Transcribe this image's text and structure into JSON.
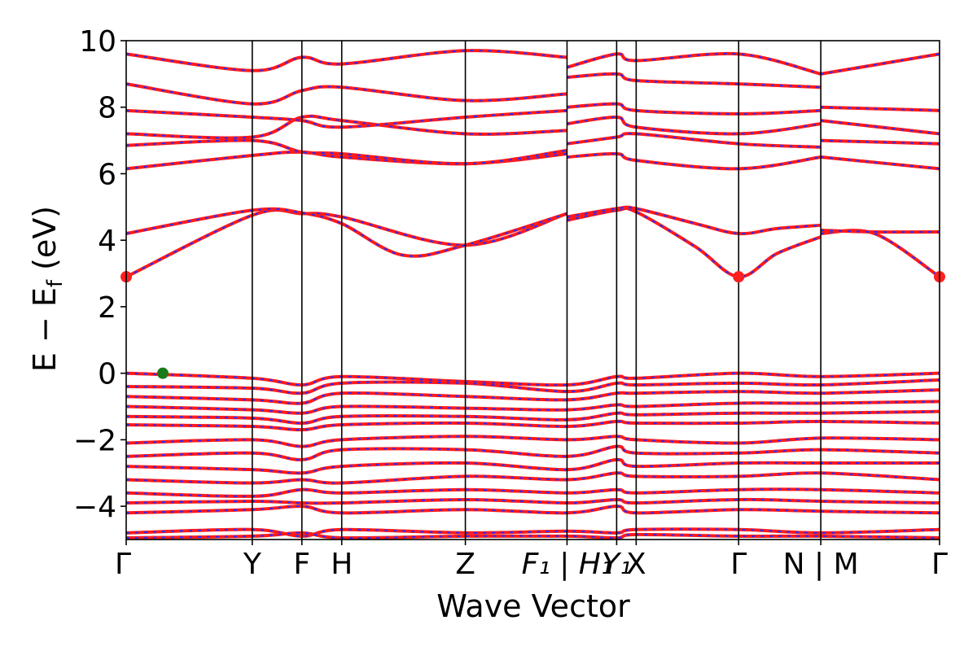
{
  "chart_data": {
    "type": "line",
    "xlabel": "Wave Vector",
    "ylabel": "E − E",
    "ylabel_sub": "f",
    "ylabel_unit": " (eV)",
    "ylim": [
      -5,
      10
    ],
    "yticks": [
      -4,
      -2,
      0,
      2,
      4,
      6,
      8,
      10
    ],
    "ytick_labels": [
      "−4",
      "−2",
      "0",
      "2",
      "4",
      "6",
      "8",
      "10"
    ],
    "xlim": [
      0,
      1
    ],
    "kpoints": [
      {
        "label": "Γ",
        "x": 0.0
      },
      {
        "label": "Y",
        "x": 0.155
      },
      {
        "label": "F",
        "x": 0.216
      },
      {
        "label": "H",
        "x": 0.265
      },
      {
        "label": "Z",
        "x": 0.417
      },
      {
        "label": "F₁ | H₁",
        "x": 0.542
      },
      {
        "label": "Y₁",
        "x": 0.603
      },
      {
        "label": "X",
        "x": 0.627
      },
      {
        "label": "Γ",
        "x": 0.753
      },
      {
        "label": "N | M",
        "x": 0.854
      },
      {
        "label": "Γ",
        "x": 1.0
      }
    ],
    "kpoint_lines": [
      0.155,
      0.216,
      0.265,
      0.417,
      0.542,
      0.603,
      0.627,
      0.753,
      0.854
    ],
    "vbm": {
      "x": 0.045,
      "y": 0.0,
      "color": "#1a7a1a"
    },
    "cbm": [
      {
        "x": 0.0,
        "y": 2.9,
        "color": "#ff2020"
      },
      {
        "x": 0.753,
        "y": 2.9,
        "color": "#ff2020"
      },
      {
        "x": 1.0,
        "y": 2.9,
        "color": "#ff2020"
      }
    ],
    "colors": {
      "band_main": "#ff1a1a",
      "band_dash": "#2a2aff",
      "frame": "#000000"
    },
    "series": [
      {
        "x": [
          0,
          0.155,
          0.216,
          0.265,
          0.417,
          0.542
        ],
        "y": [
          2.9,
          4.75,
          4.8,
          4.7,
          3.85,
          4.8
        ]
      },
      {
        "x": [
          0,
          0.155,
          0.216,
          0.265,
          0.34,
          0.417,
          0.542
        ],
        "y": [
          4.2,
          4.9,
          4.82,
          4.5,
          3.55,
          3.85,
          4.8
        ]
      },
      {
        "x": [
          0.542,
          0.603,
          0.627,
          0.7,
          0.753,
          0.8,
          0.854
        ],
        "y": [
          4.6,
          4.9,
          4.85,
          3.8,
          2.9,
          3.6,
          4.1
        ]
      },
      {
        "x": [
          0.542,
          0.603,
          0.627,
          0.7,
          0.753,
          0.8,
          0.854
        ],
        "y": [
          4.7,
          4.95,
          4.95,
          4.5,
          4.2,
          4.35,
          4.45
        ]
      },
      {
        "x": [
          0.854,
          0.92,
          1.0
        ],
        "y": [
          4.2,
          4.2,
          2.9
        ]
      },
      {
        "x": [
          0.854,
          0.92,
          1.0
        ],
        "y": [
          4.3,
          4.25,
          4.25
        ]
      },
      {
        "x": [
          0,
          0.155,
          0.216,
          0.265,
          0.417,
          0.542
        ],
        "y": [
          6.15,
          6.55,
          6.65,
          6.5,
          6.3,
          6.6
        ]
      },
      {
        "x": [
          0,
          0.155,
          0.216,
          0.265,
          0.417,
          0.542
        ],
        "y": [
          6.85,
          7.0,
          6.65,
          6.6,
          6.3,
          6.7
        ]
      },
      {
        "x": [
          0,
          0.155,
          0.216,
          0.265,
          0.417,
          0.542
        ],
        "y": [
          7.2,
          7.1,
          7.7,
          7.6,
          7.2,
          7.3
        ]
      },
      {
        "x": [
          0,
          0.155,
          0.216,
          0.265,
          0.417,
          0.542
        ],
        "y": [
          7.9,
          7.7,
          7.6,
          7.4,
          7.7,
          7.9
        ]
      },
      {
        "x": [
          0,
          0.155,
          0.216,
          0.265,
          0.417,
          0.542
        ],
        "y": [
          8.7,
          8.1,
          8.5,
          8.6,
          8.2,
          8.4
        ]
      },
      {
        "x": [
          0,
          0.155,
          0.216,
          0.265,
          0.417,
          0.542
        ],
        "y": [
          9.6,
          9.1,
          9.5,
          9.3,
          9.7,
          9.5
        ]
      },
      {
        "x": [
          0.542,
          0.603,
          0.627,
          0.753,
          0.854
        ],
        "y": [
          6.5,
          6.6,
          6.4,
          6.15,
          6.5
        ]
      },
      {
        "x": [
          0.542,
          0.603,
          0.627,
          0.753,
          0.854
        ],
        "y": [
          6.9,
          7.1,
          7.2,
          6.9,
          6.8
        ]
      },
      {
        "x": [
          0.542,
          0.603,
          0.627,
          0.753,
          0.854
        ],
        "y": [
          7.5,
          7.7,
          7.4,
          7.2,
          7.5
        ]
      },
      {
        "x": [
          0.542,
          0.603,
          0.627,
          0.753,
          0.854
        ],
        "y": [
          8.0,
          8.1,
          7.9,
          7.8,
          7.9
        ]
      },
      {
        "x": [
          0.542,
          0.603,
          0.627,
          0.753,
          0.854
        ],
        "y": [
          8.9,
          9.0,
          8.8,
          8.7,
          8.6
        ]
      },
      {
        "x": [
          0.542,
          0.603,
          0.627,
          0.753,
          0.854
        ],
        "y": [
          9.2,
          9.6,
          9.4,
          9.6,
          9.0
        ]
      },
      {
        "x": [
          0.854,
          1.0
        ],
        "y": [
          6.5,
          6.15
        ]
      },
      {
        "x": [
          0.854,
          1.0
        ],
        "y": [
          7.0,
          6.9
        ]
      },
      {
        "x": [
          0.854,
          1.0
        ],
        "y": [
          7.6,
          7.2
        ]
      },
      {
        "x": [
          0.854,
          1.0
        ],
        "y": [
          8.0,
          7.9
        ]
      },
      {
        "x": [
          0.854,
          1.0
        ],
        "y": [
          9.0,
          9.6
        ]
      },
      {
        "x": [
          0,
          0.155,
          0.216,
          0.265,
          0.417,
          0.542,
          0.603,
          0.627,
          0.753,
          0.854,
          1.0
        ],
        "y": [
          0.0,
          -0.15,
          -0.35,
          -0.1,
          -0.25,
          -0.35,
          -0.1,
          -0.15,
          0.0,
          -0.1,
          0.0
        ]
      },
      {
        "x": [
          0,
          0.155,
          0.216,
          0.265,
          0.417,
          0.542,
          0.603,
          0.627,
          0.753,
          0.854,
          1.0
        ],
        "y": [
          -0.4,
          -0.45,
          -0.6,
          -0.3,
          -0.3,
          -0.55,
          -0.3,
          -0.35,
          -0.3,
          -0.35,
          -0.2
        ]
      },
      {
        "x": [
          0,
          0.155,
          0.216,
          0.265,
          0.417,
          0.542,
          0.603,
          0.627,
          0.753,
          0.854,
          1.0
        ],
        "y": [
          -0.7,
          -0.8,
          -0.9,
          -0.6,
          -0.7,
          -0.8,
          -0.6,
          -0.6,
          -0.55,
          -0.6,
          -0.5
        ]
      },
      {
        "x": [
          0,
          0.155,
          0.216,
          0.265,
          0.417,
          0.542,
          0.603,
          0.627,
          0.753,
          0.854,
          1.0
        ],
        "y": [
          -1.0,
          -1.1,
          -1.2,
          -1.0,
          -1.05,
          -1.1,
          -0.95,
          -1.0,
          -0.9,
          -0.9,
          -0.85
        ]
      },
      {
        "x": [
          0,
          0.155,
          0.216,
          0.265,
          0.417,
          0.542,
          0.603,
          0.627,
          0.753,
          0.854,
          1.0
        ],
        "y": [
          -1.3,
          -1.35,
          -1.5,
          -1.3,
          -1.3,
          -1.4,
          -1.2,
          -1.25,
          -1.2,
          -1.2,
          -1.15
        ]
      },
      {
        "x": [
          0,
          0.155,
          0.216,
          0.265,
          0.417,
          0.542,
          0.603,
          0.627,
          0.753,
          0.854,
          1.0
        ],
        "y": [
          -1.55,
          -1.6,
          -1.7,
          -1.55,
          -1.5,
          -1.6,
          -1.45,
          -1.5,
          -1.5,
          -1.45,
          -1.5
        ]
      },
      {
        "x": [
          0,
          0.155,
          0.216,
          0.265,
          0.417,
          0.542,
          0.603,
          0.627,
          0.753,
          0.854,
          1.0
        ],
        "y": [
          -2.1,
          -2.0,
          -2.2,
          -2.0,
          -1.9,
          -2.0,
          -1.9,
          -2.0,
          -2.1,
          -1.95,
          -2.0
        ]
      },
      {
        "x": [
          0,
          0.155,
          0.216,
          0.265,
          0.417,
          0.542,
          0.603,
          0.627,
          0.753,
          0.854,
          1.0
        ],
        "y": [
          -2.5,
          -2.4,
          -2.6,
          -2.3,
          -2.3,
          -2.5,
          -2.2,
          -2.4,
          -2.4,
          -2.3,
          -2.4
        ]
      },
      {
        "x": [
          0,
          0.155,
          0.216,
          0.265,
          0.417,
          0.542,
          0.603,
          0.627,
          0.753,
          0.854,
          1.0
        ],
        "y": [
          -2.8,
          -2.9,
          -3.0,
          -2.8,
          -2.7,
          -2.9,
          -2.6,
          -2.8,
          -2.7,
          -2.7,
          -2.7
        ]
      },
      {
        "x": [
          0,
          0.155,
          0.216,
          0.265,
          0.417,
          0.542,
          0.603,
          0.627,
          0.753,
          0.854,
          1.0
        ],
        "y": [
          -3.2,
          -3.3,
          -3.2,
          -3.3,
          -3.1,
          -3.2,
          -3.0,
          -3.1,
          -3.1,
          -3.0,
          -3.2
        ]
      },
      {
        "x": [
          0,
          0.155,
          0.216,
          0.265,
          0.417,
          0.542,
          0.603,
          0.627,
          0.753,
          0.854,
          1.0
        ],
        "y": [
          -3.6,
          -3.7,
          -3.5,
          -3.6,
          -3.5,
          -3.6,
          -3.5,
          -3.6,
          -3.5,
          -3.5,
          -3.6
        ]
      },
      {
        "x": [
          0,
          0.155,
          0.216,
          0.265,
          0.417,
          0.542,
          0.603,
          0.627,
          0.753,
          0.854,
          1.0
        ],
        "y": [
          -3.9,
          -3.85,
          -3.9,
          -3.9,
          -3.8,
          -3.9,
          -3.8,
          -3.9,
          -3.8,
          -3.85,
          -3.9
        ]
      },
      {
        "x": [
          0,
          0.155,
          0.216,
          0.265,
          0.417,
          0.542,
          0.603,
          0.627,
          0.753,
          0.854,
          1.0
        ],
        "y": [
          -4.2,
          -4.1,
          -4.0,
          -4.2,
          -4.1,
          -4.2,
          -4.0,
          -4.2,
          -4.1,
          -4.15,
          -4.2
        ]
      },
      {
        "x": [
          0,
          0.155,
          0.216,
          0.265,
          0.417,
          0.542,
          0.603,
          0.627,
          0.753,
          0.854,
          1.0
        ],
        "y": [
          -4.8,
          -4.7,
          -4.9,
          -4.7,
          -4.8,
          -4.75,
          -4.8,
          -4.7,
          -4.7,
          -4.8,
          -4.7
        ]
      },
      {
        "x": [
          0,
          0.155,
          0.216,
          0.265,
          0.417,
          0.542,
          0.603,
          0.627,
          0.753,
          0.854,
          1.0
        ],
        "y": [
          -4.95,
          -4.9,
          -4.8,
          -4.95,
          -4.9,
          -4.9,
          -4.95,
          -4.85,
          -4.9,
          -4.9,
          -4.95
        ]
      }
    ]
  }
}
